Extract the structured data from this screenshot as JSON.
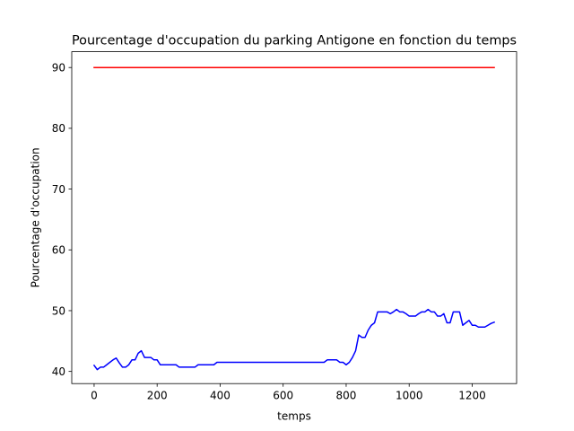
{
  "chart_data": {
    "type": "line",
    "title": "Pourcentage d'occupation du parking Antigone en fonction du temps",
    "xlabel": "temps",
    "ylabel": "Pourcentage d'occupation",
    "xlim": [
      -71,
      1341
    ],
    "ylim": [
      38.0,
      92.6
    ],
    "xticks": [
      0,
      200,
      400,
      600,
      800,
      1000,
      1200
    ],
    "yticks": [
      40,
      50,
      60,
      70,
      80,
      90
    ],
    "grid": false,
    "series": [
      {
        "color": "#ff0000",
        "x": [
          0,
          1270
        ],
        "y": [
          90,
          90
        ]
      },
      {
        "color": "#0000ff",
        "x": [
          0,
          10,
          20,
          30,
          40,
          50,
          60,
          70,
          80,
          90,
          100,
          110,
          120,
          130,
          140,
          150,
          160,
          170,
          180,
          190,
          200,
          210,
          220,
          230,
          240,
          250,
          260,
          270,
          280,
          290,
          300,
          310,
          320,
          330,
          340,
          350,
          360,
          370,
          380,
          390,
          400,
          420,
          440,
          460,
          480,
          500,
          520,
          540,
          560,
          580,
          600,
          620,
          640,
          660,
          680,
          700,
          720,
          730,
          740,
          750,
          760,
          770,
          780,
          790,
          800,
          810,
          820,
          830,
          840,
          850,
          860,
          870,
          880,
          890,
          900,
          910,
          920,
          930,
          940,
          950,
          960,
          970,
          980,
          990,
          1000,
          1010,
          1020,
          1030,
          1040,
          1050,
          1060,
          1070,
          1080,
          1090,
          1100,
          1110,
          1120,
          1130,
          1140,
          1150,
          1160,
          1170,
          1180,
          1190,
          1200,
          1210,
          1220,
          1230,
          1240,
          1250,
          1260,
          1270
        ],
        "y": [
          41.0,
          40.3,
          40.7,
          40.7,
          41.1,
          41.5,
          41.9,
          42.2,
          41.4,
          40.7,
          40.7,
          41.1,
          41.9,
          41.9,
          43.0,
          43.4,
          42.3,
          42.3,
          42.3,
          41.9,
          41.9,
          41.1,
          41.1,
          41.1,
          41.1,
          41.1,
          41.1,
          40.7,
          40.7,
          40.7,
          40.7,
          40.7,
          40.7,
          41.1,
          41.1,
          41.1,
          41.1,
          41.1,
          41.1,
          41.5,
          41.5,
          41.5,
          41.5,
          41.5,
          41.5,
          41.5,
          41.5,
          41.5,
          41.5,
          41.5,
          41.5,
          41.5,
          41.5,
          41.5,
          41.5,
          41.5,
          41.5,
          41.5,
          41.9,
          41.9,
          41.9,
          41.9,
          41.5,
          41.5,
          41.1,
          41.5,
          42.3,
          43.4,
          46.0,
          45.6,
          45.6,
          46.8,
          47.6,
          48.0,
          49.8,
          49.8,
          49.8,
          49.8,
          49.5,
          49.8,
          50.2,
          49.8,
          49.8,
          49.5,
          49.1,
          49.1,
          49.1,
          49.5,
          49.8,
          49.8,
          50.2,
          49.8,
          49.8,
          49.1,
          49.1,
          49.5,
          48.0,
          48.0,
          49.8,
          49.8,
          49.8,
          47.6,
          48.0,
          48.4,
          47.6,
          47.6,
          47.3,
          47.3,
          47.3,
          47.6,
          47.9,
          48.1
        ]
      }
    ]
  }
}
